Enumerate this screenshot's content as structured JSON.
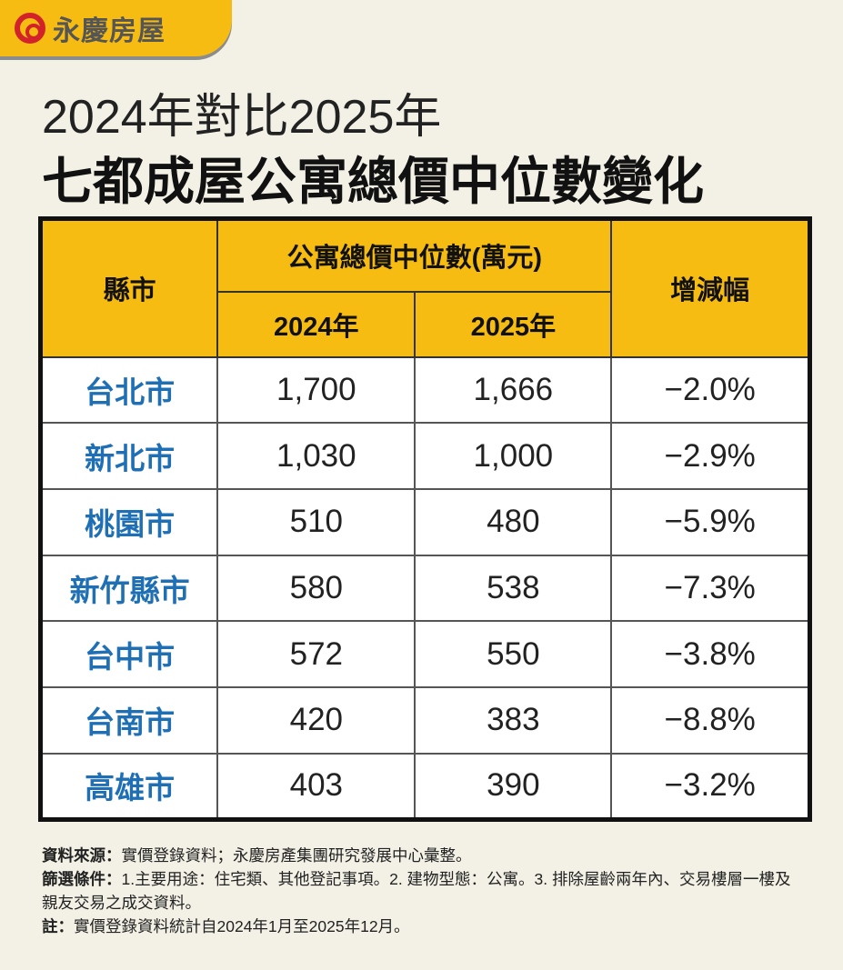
{
  "logo": {
    "text": "永慶房屋",
    "colors": {
      "brand_red": "#d2232a",
      "brand_yellow": "#f6bc12"
    }
  },
  "title": {
    "line1": "2024年對比2025年",
    "line2": "七都成屋公寓總價中位數變化"
  },
  "chart_data": {
    "type": "table",
    "columns": {
      "city": "縣市",
      "group": "公寓總價中位數(萬元)",
      "y2024": "2024年",
      "y2025": "2025年",
      "change": "增減幅"
    },
    "rows": [
      {
        "city": "台北市",
        "y2024": "1,700",
        "y2025": "1,666",
        "change": "−2.0%"
      },
      {
        "city": "新北市",
        "y2024": "1,030",
        "y2025": "1,000",
        "change": "−2.9%"
      },
      {
        "city": "桃園市",
        "y2024": "510",
        "y2025": "480",
        "change": "−5.9%"
      },
      {
        "city": "新竹縣市",
        "y2024": "580",
        "y2025": "538",
        "change": "−7.3%"
      },
      {
        "city": "台中市",
        "y2024": "572",
        "y2025": "550",
        "change": "−3.8%"
      },
      {
        "city": "台南市",
        "y2024": "420",
        "y2025": "383",
        "change": "−8.8%"
      },
      {
        "city": "高雄市",
        "y2024": "403",
        "y2025": "390",
        "change": "−3.2%"
      }
    ],
    "colors": {
      "header": "#f6bc12",
      "city_text": "#1f6fb5"
    }
  },
  "notes": {
    "source_label": "資料來源：",
    "source": "實價登錄資料；永慶房產集團研究發展中心彙整。",
    "filter_label": "篩選條件：",
    "filter": "1.主要用途：住宅類、其他登記事項。2. 建物型態：公寓。3. 排除屋齡兩年內、交易樓層一樓及親友交易之成交資料。",
    "note_label": "註：",
    "note": "實價登錄資料統計自2024年1月至2025年12月。"
  }
}
